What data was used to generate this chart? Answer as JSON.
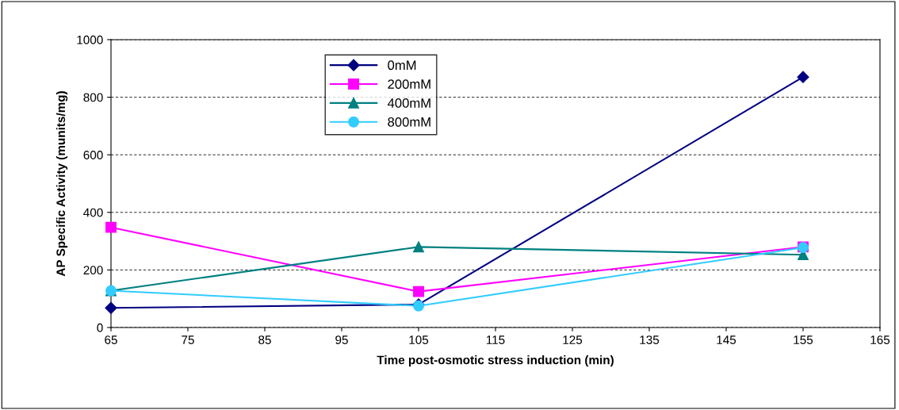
{
  "chart_data": {
    "type": "line",
    "xlabel": "Time post-osmotic stress induction (min)",
    "ylabel": "AP Specific Activity (munits/mg)",
    "x": [
      65,
      105,
      155
    ],
    "series": [
      {
        "name": "0mM",
        "color": "#000080",
        "marker": "diamond",
        "values": [
          68,
          80,
          870
        ]
      },
      {
        "name": "200mM",
        "color": "#ff00ff",
        "marker": "square",
        "values": [
          348,
          125,
          280
        ]
      },
      {
        "name": "400mM",
        "color": "#008080",
        "marker": "triangle",
        "values": [
          128,
          280,
          253
        ]
      },
      {
        "name": "800mM",
        "color": "#33ccff",
        "marker": "circle",
        "values": [
          128,
          75,
          278
        ]
      }
    ],
    "xlim": [
      65,
      165
    ],
    "xticks": [
      65,
      75,
      85,
      95,
      105,
      115,
      125,
      135,
      145,
      155,
      165
    ],
    "ylim": [
      0,
      1000
    ],
    "yticks": [
      0,
      200,
      400,
      600,
      800,
      1000
    ],
    "grid": "y",
    "legend": "top",
    "line_style": "solid"
  }
}
